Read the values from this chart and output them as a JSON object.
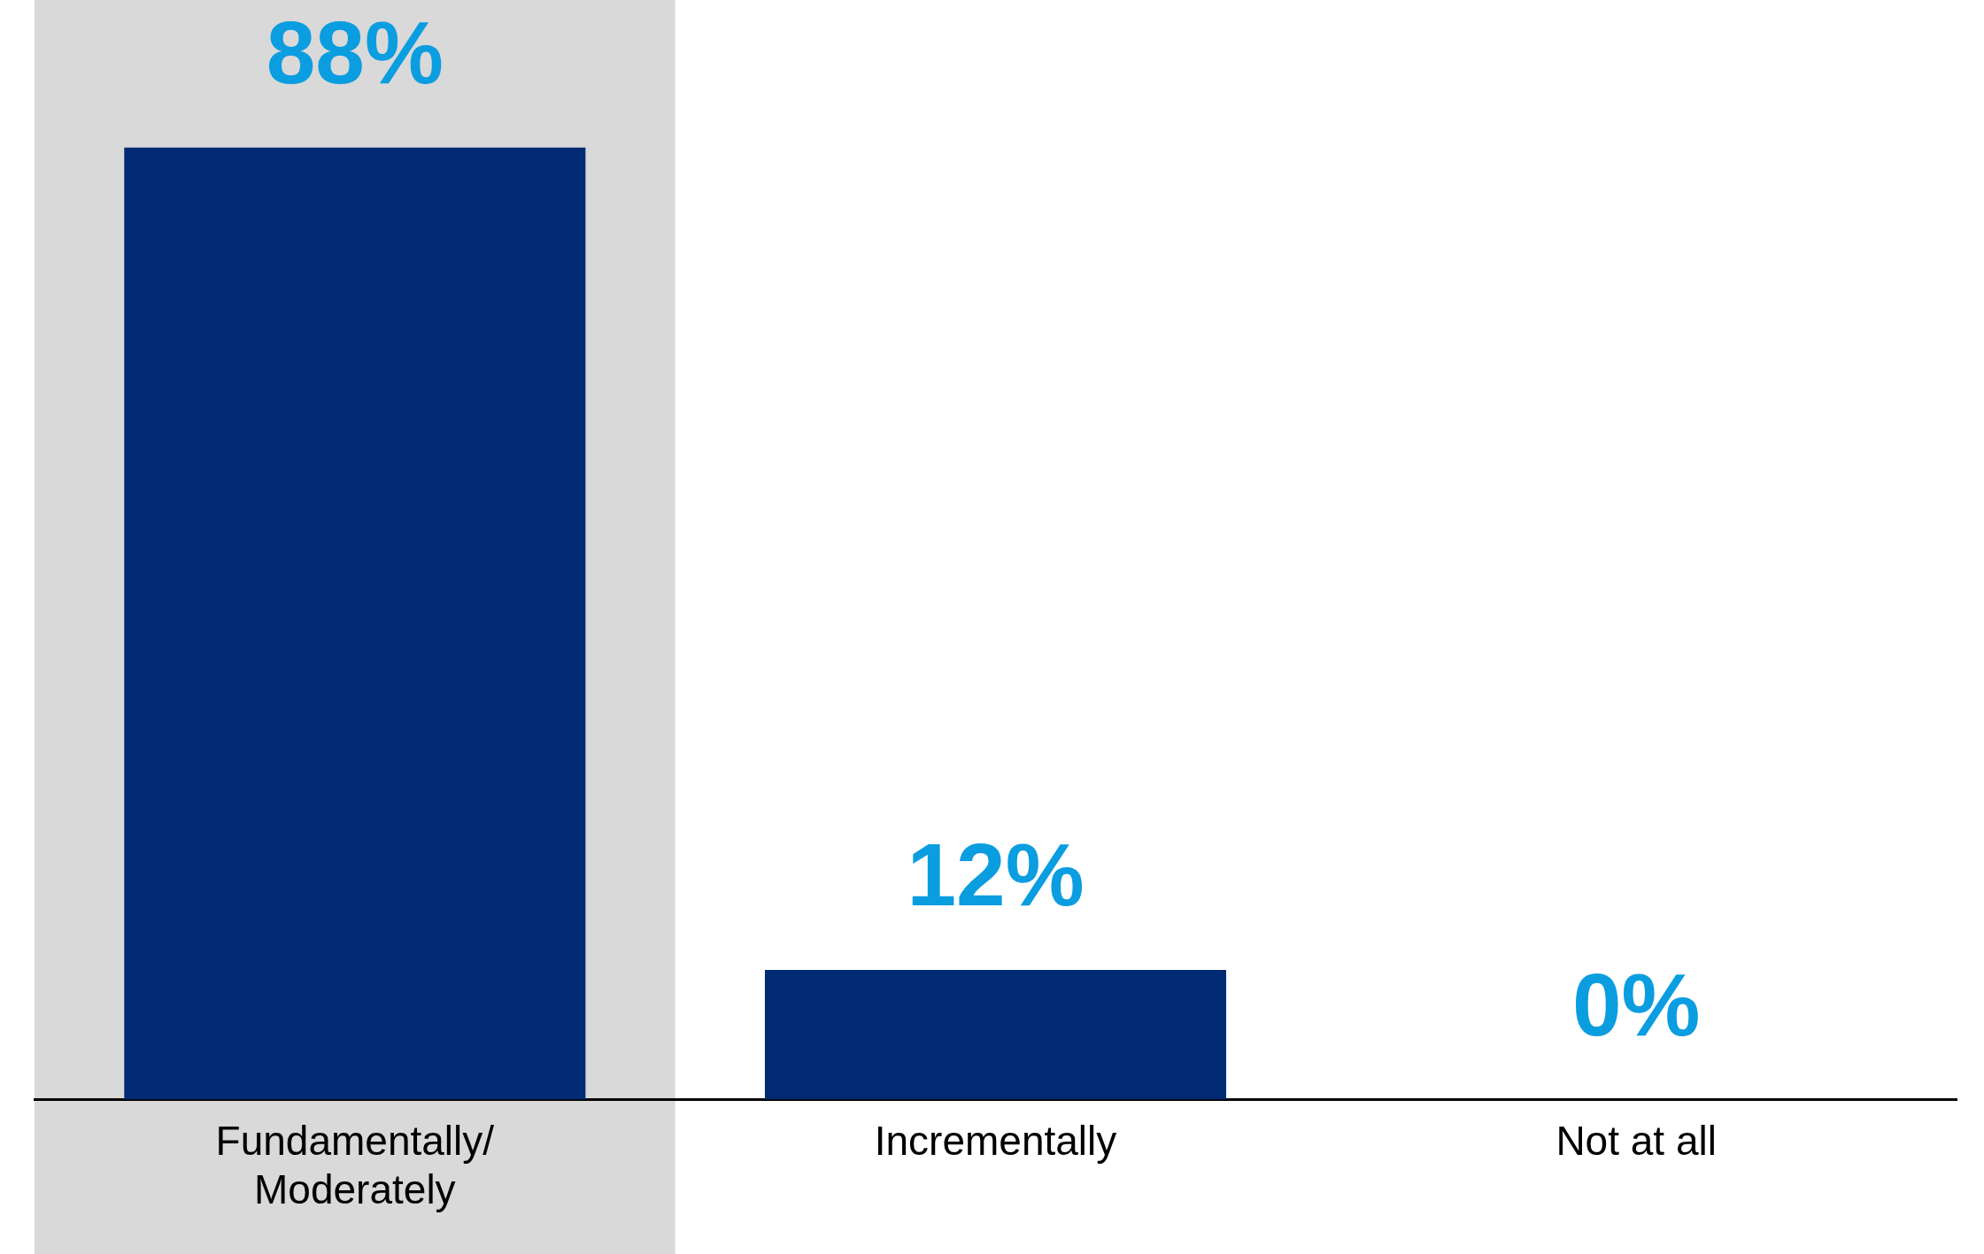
{
  "chart_data": {
    "type": "bar",
    "categories": [
      "Fundamentally/\nModerately",
      "Incrementally",
      "Not at all"
    ],
    "values": [
      88,
      12,
      0
    ],
    "value_labels": [
      "88%",
      "12%",
      "0%"
    ],
    "color": "#002b73",
    "relative": false,
    "grid": false,
    "legend": false,
    "bands": [
      {
        "axis": "x",
        "from": "Fundamentally/\nModerately",
        "to": "Fundamentally/\nModerately",
        "color": "#d9d9d9"
      }
    ]
  }
}
